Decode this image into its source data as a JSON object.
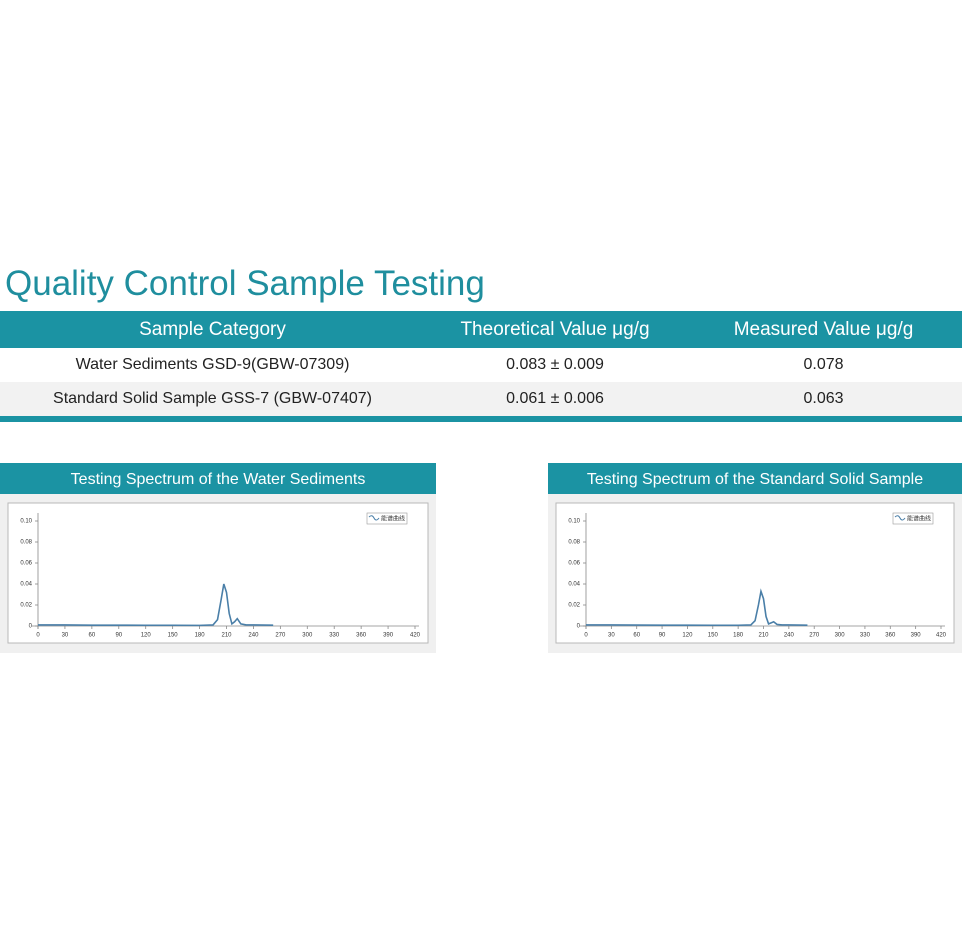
{
  "title": "Quality Control Sample Testing",
  "table": {
    "headers": [
      "Sample Category",
      "Theoretical Value μg/g",
      "Measured Value μg/g"
    ],
    "rows": [
      [
        "Water Sediments GSD-9(GBW-07309)",
        "0.083 ± 0.009",
        "0.078"
      ],
      [
        "Standard Solid Sample GSS-7 (GBW-07407)",
        "0.061 ± 0.006",
        "0.063"
      ]
    ]
  },
  "panels": [
    {
      "title": "Testing Spectrum of the Water Sediments",
      "chart_data": {
        "type": "line",
        "x": [
          0,
          30,
          60,
          90,
          120,
          150,
          180,
          195,
          200,
          204,
          207,
          210,
          213,
          216,
          219,
          222,
          226,
          232,
          240,
          262
        ],
        "series": [
          {
            "name": "能谱曲线",
            "color": "#4a7fa8",
            "values": [
              0.001,
              0.001,
              0.0008,
              0.0008,
              0.0007,
              0.0007,
              0.0006,
              0.001,
              0.006,
              0.025,
              0.04,
              0.032,
              0.012,
              0.002,
              0.004,
              0.007,
              0.002,
              0.001,
              0.001,
              0.0008
            ]
          }
        ],
        "xlim": [
          0,
          420
        ],
        "xticks": [
          0,
          30,
          60,
          90,
          120,
          150,
          180,
          210,
          240,
          270,
          300,
          330,
          360,
          390,
          420
        ],
        "ylim": [
          0,
          0.1
        ],
        "yticks": [
          0,
          0.02,
          0.04,
          0.06,
          0.08,
          {
            "value": 0.1,
            "label": "0.10"
          }
        ]
      }
    },
    {
      "title": "Testing Spectrum of the Standard Solid Sample",
      "chart_data": {
        "type": "line",
        "x": [
          0,
          30,
          60,
          90,
          120,
          150,
          180,
          195,
          200,
          204,
          207,
          210,
          213,
          216,
          219,
          222,
          226,
          232,
          240,
          262
        ],
        "series": [
          {
            "name": "能谱曲线",
            "color": "#4a7fa8",
            "values": [
              0.001,
              0.001,
              0.0009,
              0.0008,
              0.0008,
              0.0007,
              0.0007,
              0.001,
              0.005,
              0.02,
              0.033,
              0.026,
              0.009,
              0.002,
              0.003,
              0.004,
              0.0015,
              0.001,
              0.001,
              0.0008
            ]
          }
        ],
        "xlim": [
          0,
          420
        ],
        "xticks": [
          0,
          30,
          60,
          90,
          120,
          150,
          180,
          210,
          240,
          270,
          300,
          330,
          360,
          390,
          420
        ],
        "ylim": [
          0,
          0.1
        ],
        "yticks": [
          0,
          0.02,
          0.04,
          0.06,
          0.08,
          {
            "value": 0.1,
            "label": "0.10"
          }
        ]
      }
    }
  ]
}
